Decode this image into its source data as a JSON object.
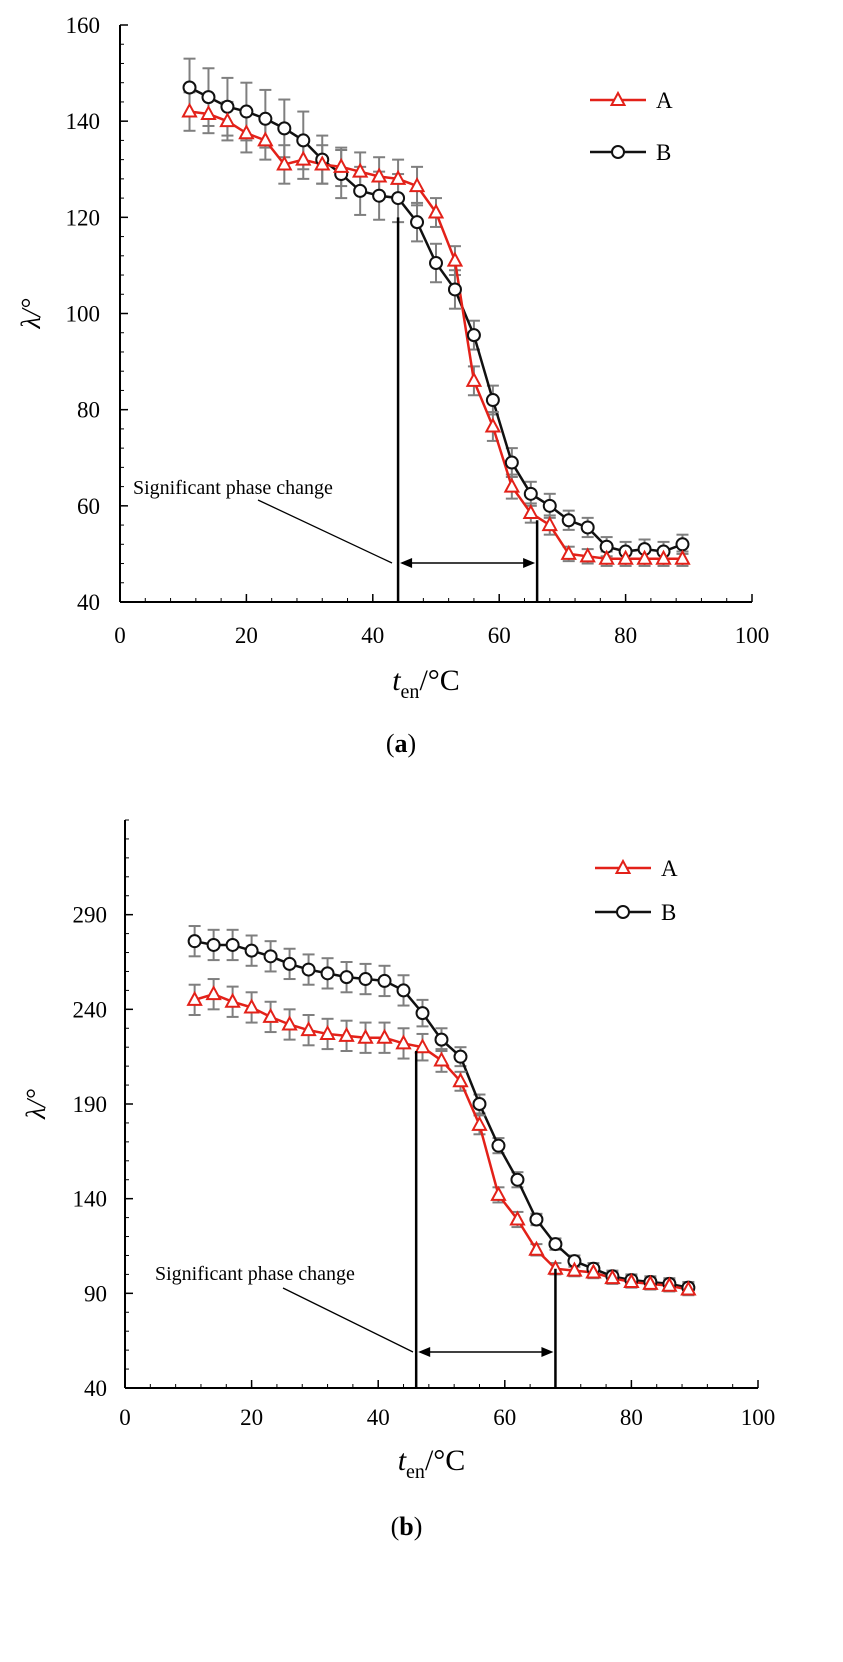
{
  "figure": {
    "panels": [
      "(a)",
      "(b)"
    ]
  },
  "colors": {
    "series_A": "#e32119",
    "series_B": "#111111",
    "error_bar": "#7f7f7f",
    "axis": "#000000"
  },
  "chart_data": [
    {
      "type": "line",
      "title": "",
      "panel_label": "(a)",
      "panel_letter": "a",
      "xlabel_var": "t",
      "xlabel_sub": "en",
      "xlabel_unit": "/°C",
      "ylabel": "λ/°",
      "xlim": [
        0,
        100
      ],
      "ylim": [
        40,
        160
      ],
      "xticks": [
        0,
        20,
        40,
        60,
        80,
        100
      ],
      "yticks": [
        40,
        60,
        80,
        100,
        120,
        140,
        160
      ],
      "x": [
        11,
        14,
        17,
        20,
        23,
        26,
        29,
        32,
        35,
        38,
        41,
        44,
        47,
        50,
        53,
        56,
        59,
        62,
        65,
        68,
        71,
        74,
        77,
        80,
        83,
        86,
        89
      ],
      "series": [
        {
          "name": "A",
          "marker": "triangle",
          "values": [
            142,
            141.5,
            140,
            137.5,
            136,
            131,
            132,
            131,
            130.5,
            129.5,
            128.5,
            128,
            126.5,
            121,
            111,
            86,
            76.5,
            64,
            58.5,
            56,
            50,
            49.5,
            49,
            49,
            49,
            49,
            49
          ],
          "errors": [
            4,
            4,
            4,
            4,
            4,
            4,
            4,
            4,
            4,
            4,
            4,
            4,
            4,
            3,
            3,
            3,
            3,
            2.5,
            2,
            2,
            1.5,
            1.5,
            1.5,
            1.5,
            1.5,
            1.5,
            1.5
          ]
        },
        {
          "name": "B",
          "marker": "circle",
          "values": [
            147,
            145,
            143,
            142,
            140.5,
            138.5,
            136,
            132,
            129,
            125.5,
            124.5,
            124,
            119,
            110.5,
            105,
            95.5,
            82,
            69,
            62.5,
            60,
            57,
            55.5,
            51.5,
            50.5,
            51,
            50.5,
            52
          ],
          "errors": [
            6,
            6,
            6,
            6,
            6,
            6,
            6,
            5,
            5,
            5,
            5,
            5,
            4,
            4,
            4,
            3,
            3,
            3,
            2.5,
            2.5,
            2,
            2,
            2,
            2,
            2,
            2,
            2
          ]
        }
      ],
      "legend": {
        "position": "top-right",
        "labels": [
          "A",
          "B"
        ]
      },
      "annotation": {
        "text": "Significant phase change",
        "range": [
          44,
          66
        ],
        "range_top_y": [
          120,
          57
        ]
      }
    },
    {
      "type": "line",
      "title": "",
      "panel_label": "(b)",
      "panel_letter": "b",
      "xlabel_var": "t",
      "xlabel_sub": "en",
      "xlabel_unit": "/°C",
      "ylabel": "λ/°",
      "xlim": [
        0,
        100
      ],
      "ylim": [
        40,
        340
      ],
      "xticks": [
        0,
        20,
        40,
        60,
        80,
        100
      ],
      "yticks": [
        40,
        90,
        140,
        190,
        240,
        290
      ],
      "x": [
        11,
        14,
        17,
        20,
        23,
        26,
        29,
        32,
        35,
        38,
        41,
        44,
        47,
        50,
        53,
        56,
        59,
        62,
        65,
        68,
        71,
        74,
        77,
        80,
        83,
        86,
        89
      ],
      "series": [
        {
          "name": "A",
          "marker": "triangle",
          "values": [
            245,
            248,
            244,
            241,
            236,
            232,
            229,
            227,
            226,
            225,
            225,
            222,
            220,
            213,
            202,
            179,
            142,
            129,
            113,
            103,
            102,
            101,
            98,
            96,
            95,
            94,
            92
          ],
          "errors": [
            8,
            8,
            8,
            8,
            8,
            8,
            8,
            8,
            8,
            8,
            8,
            8,
            7,
            6,
            5,
            5,
            4,
            4,
            3,
            3,
            3,
            3,
            3,
            3,
            3,
            3,
            3
          ]
        },
        {
          "name": "B",
          "marker": "circle",
          "values": [
            276,
            274,
            274,
            271,
            268,
            264,
            261,
            259,
            257,
            256,
            255,
            250,
            238,
            224,
            215,
            190,
            168,
            150,
            129,
            116,
            107,
            103,
            99,
            97,
            96,
            95,
            93
          ],
          "errors": [
            8,
            8,
            8,
            8,
            8,
            8,
            8,
            8,
            8,
            8,
            8,
            8,
            7,
            6,
            5,
            5,
            4,
            4,
            3,
            3,
            3,
            3,
            3,
            3,
            3,
            3,
            3
          ]
        }
      ],
      "legend": {
        "position": "top-right",
        "labels": [
          "A",
          "B"
        ]
      },
      "annotation": {
        "text": "Significant phase change",
        "range": [
          46,
          68
        ],
        "range_top_y": [
          218,
          103
        ]
      }
    }
  ]
}
